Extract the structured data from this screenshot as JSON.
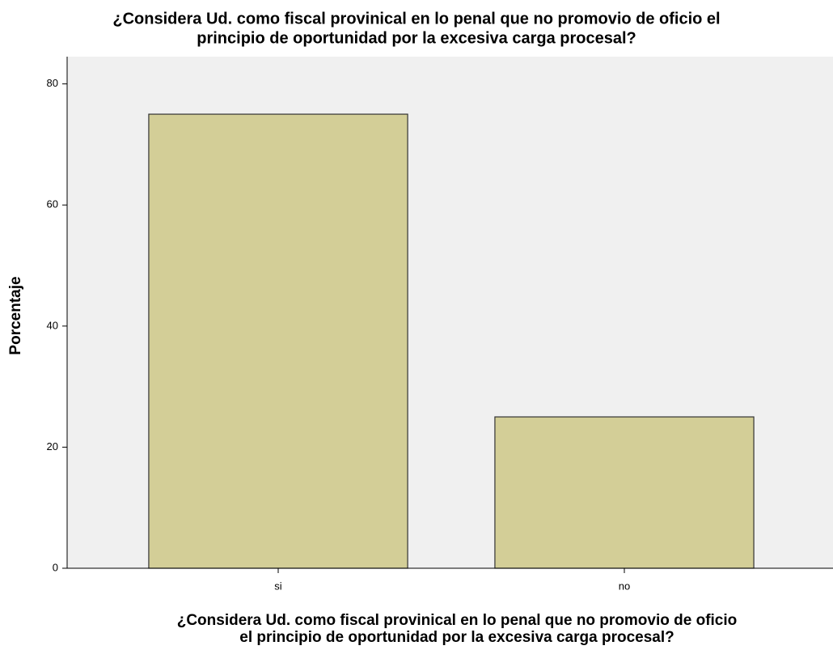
{
  "chart_data": {
    "type": "bar",
    "title": [
      "¿Considera Ud. como fiscal provinical en lo penal que no promovio de oficio el",
      "principio de oportunidad por la excesiva carga procesal?"
    ],
    "x_label": [
      "¿Considera Ud. como fiscal provinical en lo penal que no promovio de oficio",
      "el principio de oportunidad por la excesiva carga procesal?"
    ],
    "y_label": "Porcentaje",
    "categories": [
      "si",
      "no"
    ],
    "values": [
      75,
      25
    ],
    "color": "#d3ce97",
    "ylim": [
      0,
      84.5
    ],
    "yticks": [
      0,
      20,
      40,
      60,
      80
    ],
    "grid": false
  }
}
